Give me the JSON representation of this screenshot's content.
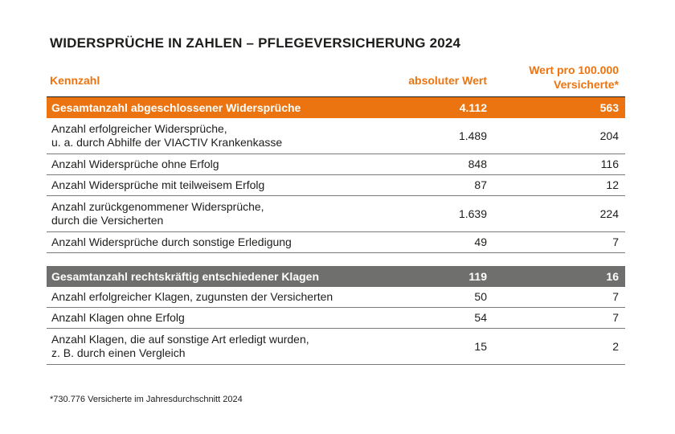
{
  "title": "WIDERSPRÜCHE IN ZAHLEN – PFLEGEVERSICHERUNG 2024",
  "header": {
    "col1": "Kennzahl",
    "col2": "absoluter Wert",
    "col3_line1": "Wert pro 100.000",
    "col3_line2": "Versicherte*"
  },
  "section1": {
    "total": {
      "label": "Gesamtanzahl abgeschlossener Widersprüche",
      "abs": "4.112",
      "per": "563"
    },
    "rows": [
      {
        "line1": "Anzahl erfolgreicher Widersprüche,",
        "line2": "u. a. durch Abhilfe der VIACTIV Krankenkasse",
        "abs": "1.489",
        "per": "204"
      },
      {
        "line1": "Anzahl Widersprüche ohne Erfolg",
        "abs": "848",
        "per": "116"
      },
      {
        "line1": "Anzahl Widersprüche mit teilweisem Erfolg",
        "abs": "87",
        "per": "12"
      },
      {
        "line1": "Anzahl zurückgenommener Widersprüche,",
        "line2": "durch die Versicherten",
        "abs": "1.639",
        "per": "224"
      },
      {
        "line1": "Anzahl Widersprüche durch sonstige Erledigung",
        "abs": "49",
        "per": "7"
      }
    ]
  },
  "section2": {
    "total": {
      "label": "Gesamtanzahl rechtskräftig entschiedener Klagen",
      "abs": "119",
      "per": "16"
    },
    "rows": [
      {
        "line1": "Anzahl erfolgreicher Klagen, zugunsten der Versicherten",
        "abs": "50",
        "per": "7"
      },
      {
        "line1": "Anzahl Klagen ohne Erfolg",
        "abs": "54",
        "per": "7"
      },
      {
        "line1": "Anzahl Klagen, die auf sonstige Art erledigt wurden,",
        "line2": "z. B. durch einen Vergleich",
        "abs": "15",
        "per": "2"
      }
    ]
  },
  "footnote": "*730.776 Versicherte im Jahresdurchschnitt 2024",
  "colors": {
    "accent": "#ec7410",
    "gray_band": "#6f6f6e",
    "text": "#1d1d1b"
  }
}
